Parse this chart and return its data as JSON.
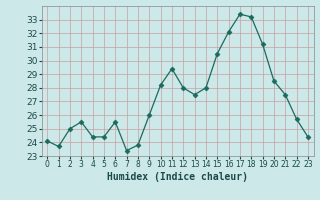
{
  "x": [
    0,
    1,
    2,
    3,
    4,
    5,
    6,
    7,
    8,
    9,
    10,
    11,
    12,
    13,
    14,
    15,
    16,
    17,
    18,
    19,
    20,
    21,
    22,
    23
  ],
  "y": [
    24.1,
    23.7,
    25.0,
    25.5,
    24.4,
    24.4,
    25.5,
    23.4,
    23.8,
    26.0,
    28.2,
    29.4,
    28.0,
    27.5,
    28.0,
    30.5,
    32.1,
    33.4,
    33.2,
    31.2,
    28.5,
    27.5,
    25.7,
    24.4
  ],
  "line_color": "#1a6b5e",
  "marker": "D",
  "marker_size": 2.5,
  "bg_color": "#cde8e8",
  "grid_color": "#b8d8d8",
  "xlabel": "Humidex (Indice chaleur)",
  "ylim": [
    23,
    34
  ],
  "xlim": [
    -0.5,
    23.5
  ],
  "yticks": [
    23,
    24,
    25,
    26,
    27,
    28,
    29,
    30,
    31,
    32,
    33
  ],
  "xticks": [
    0,
    1,
    2,
    3,
    4,
    5,
    6,
    7,
    8,
    9,
    10,
    11,
    12,
    13,
    14,
    15,
    16,
    17,
    18,
    19,
    20,
    21,
    22,
    23
  ],
  "xlabel_fontsize": 7,
  "xtick_fontsize": 5.5,
  "ytick_fontsize": 6.5
}
